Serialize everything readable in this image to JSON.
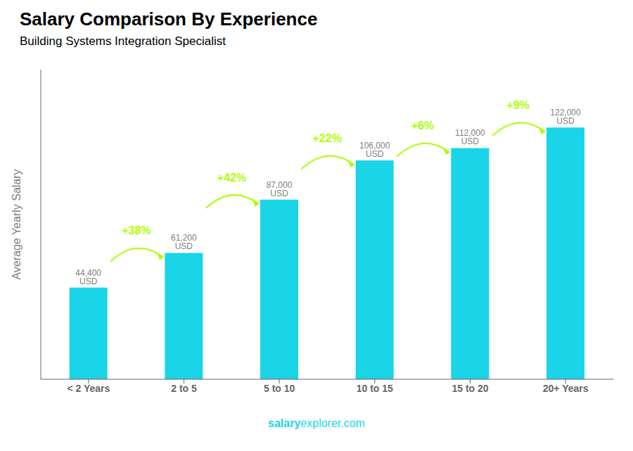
{
  "chart_data": {
    "type": "bar",
    "title": "Salary Comparison By Experience",
    "subtitle": "Building Systems Integration Specialist",
    "ylabel": "Average Yearly Salary",
    "categories": [
      "< 2 Years",
      "2 to 5",
      "5 to 10",
      "10 to 15",
      "15 to 20",
      "20+ Years"
    ],
    "values": [
      44400,
      61200,
      87000,
      106000,
      112000,
      122000
    ],
    "value_labels": [
      "44,400 USD",
      "61,200 USD",
      "87,000 USD",
      "106,000 USD",
      "112,000 USD",
      "122,000 USD"
    ],
    "data_labels": true,
    "color": "#1ad4e8",
    "ylim": [
      0,
      150000
    ],
    "tick_labels": "x",
    "annotations": [
      {
        "text": "+38%",
        "color": "#aaff00"
      },
      {
        "text": "+42%",
        "color": "#aaff00"
      },
      {
        "text": "+22%",
        "color": "#aaff00"
      },
      {
        "text": "+6%",
        "color": "#aaff00"
      },
      {
        "text": "+9%",
        "color": "#aaff00"
      }
    ],
    "watermark": [
      "salary",
      "explorer.com"
    ]
  }
}
